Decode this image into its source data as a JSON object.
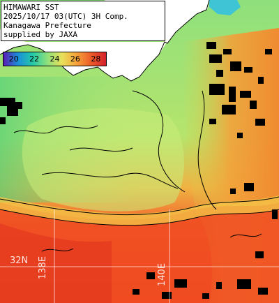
{
  "caption": {
    "lines": [
      "HIMAWARI SST",
      "2025/10/17 03(UTC) 3H Comp.",
      "Kanagawa Prefecture",
      "supplied by JAXA"
    ]
  },
  "color_scale": {
    "labels": [
      "20",
      "22",
      "24",
      "26",
      "28"
    ],
    "colors": [
      "#5a1fb4",
      "#1a8fd8",
      "#23c9a8",
      "#8fe07a",
      "#e9e05a",
      "#f5a23a",
      "#ec5a2a",
      "#d4202a"
    ]
  },
  "grid_labels": {
    "latitude": "32N",
    "longitude_west": "138E",
    "longitude_east": "140E"
  },
  "palette": {
    "land": "#ffffff",
    "cloud": "#000000",
    "coastline": "#000000",
    "warm_sea": "#f2451e",
    "mid_sea": "#f59a2e",
    "cool_sea": "#a8e063",
    "cold_sea": "#6fd98a"
  }
}
